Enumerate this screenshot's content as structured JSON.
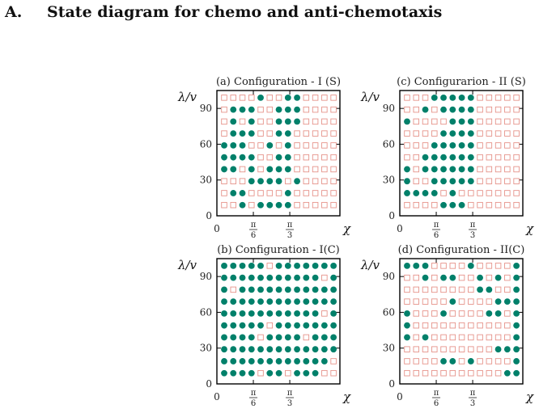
{
  "heading": {
    "label": "A.",
    "text": "State diagram for chemo and anti-chemotaxis"
  },
  "colors": {
    "filled": "#00806a",
    "empty": "#e6938a",
    "frame": "#000000"
  },
  "chart_data": [
    {
      "type": "scatter",
      "title": "(a) Configuration - I (S)",
      "xlabel": "χ",
      "ylabel": "λ/v",
      "xticks": [
        {
          "label": "0",
          "value": 0
        },
        {
          "label": "π/6",
          "value": 4
        },
        {
          "label": "π/3",
          "value": 8
        }
      ],
      "yticks": [
        0,
        30,
        60,
        90
      ],
      "grid": [
        "0000100110000",
        "0111001110000",
        "0101001110000",
        "0111001100000",
        "1110010100000",
        "1111001100000",
        "1101011100000",
        "0001111010000",
        "0110000100000",
        "0010111100000"
      ]
    },
    {
      "type": "scatter",
      "title": "(c) Configurarion - II (S)",
      "xlabel": "χ",
      "ylabel": "λ/v",
      "xticks": [
        {
          "label": "0",
          "value": 0
        },
        {
          "label": "π/6",
          "value": 4
        },
        {
          "label": "π/3",
          "value": 8
        }
      ],
      "yticks": [
        0,
        30,
        60,
        90
      ],
      "grid": [
        "0001111100000",
        "0010111100000",
        "1000011100000",
        "0000111100000",
        "0001111100000",
        "0011111100000",
        "1011111100000",
        "1001111100000",
        "1111010000000",
        "0000111000000"
      ]
    },
    {
      "type": "scatter",
      "title": "(b) Configuration - I(C)",
      "xlabel": "χ",
      "ylabel": "λ/v",
      "xticks": [
        {
          "label": "0",
          "value": 0
        },
        {
          "label": "π/6",
          "value": 4
        },
        {
          "label": "π/3",
          "value": 8
        }
      ],
      "yticks": [
        0,
        30,
        60,
        90
      ],
      "grid": [
        "1111101111111",
        "1111111111101",
        "1011111111111",
        "1111111111111",
        "1111111111101",
        "1111101111111",
        "1111011110111",
        "1111111111111",
        "1111111111110",
        "1111011011100"
      ]
    },
    {
      "type": "scatter",
      "title": "(d) Configuration - II(C)",
      "xlabel": "χ",
      "ylabel": "λ/v",
      "xticks": [
        {
          "label": "0",
          "value": 0
        },
        {
          "label": "π/6",
          "value": 4
        },
        {
          "label": "π/3",
          "value": 8
        }
      ],
      "yticks": [
        0,
        30,
        60,
        90
      ],
      "grid": [
        "1110000100001",
        "0010110010101",
        "0000000011001",
        "0000010000111",
        "1000100001101",
        "1000000000001",
        "1010000000001",
        "0000000000111",
        "0000110100001",
        "0000000000011"
      ]
    }
  ]
}
